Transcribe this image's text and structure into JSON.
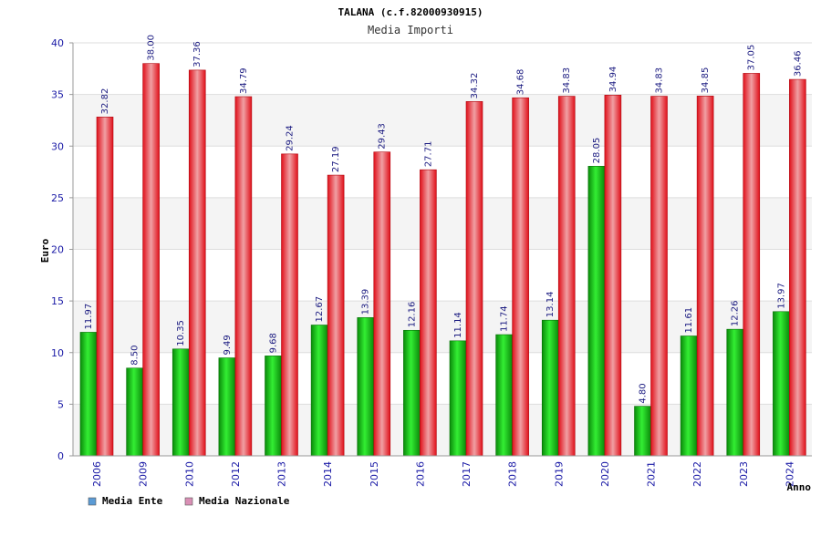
{
  "chart_data": {
    "type": "bar",
    "title": "TALANA (c.f.82000930915)",
    "subtitle": "Media Importi",
    "ylabel": "Euro",
    "xlabel": "Anno",
    "ylim": [
      0,
      40
    ],
    "yticks": [
      0,
      5,
      10,
      15,
      20,
      25,
      30,
      35,
      40
    ],
    "categories": [
      "2006",
      "2009",
      "2010",
      "2012",
      "2013",
      "2014",
      "2015",
      "2016",
      "2017",
      "2018",
      "2019",
      "2020",
      "2021",
      "2022",
      "2023",
      "2024"
    ],
    "series": [
      {
        "name": "Media Ente",
        "color": "#00b400",
        "values": [
          11.97,
          8.5,
          10.35,
          9.49,
          9.68,
          12.67,
          13.39,
          12.16,
          11.14,
          11.74,
          13.14,
          28.05,
          4.8,
          11.61,
          12.26,
          13.97
        ]
      },
      {
        "name": "Media Nazionale",
        "color": "#e8101a",
        "values": [
          32.82,
          38.0,
          37.36,
          34.79,
          29.24,
          27.19,
          29.43,
          27.71,
          34.32,
          34.68,
          34.83,
          34.94,
          34.83,
          34.85,
          37.05,
          36.46
        ]
      }
    ],
    "legend": {
      "placement": "bottom-left",
      "items": [
        {
          "label": "Media Ente",
          "color": "#5b9bd5"
        },
        {
          "label": "Media Nazionale",
          "color": "#d98fb5"
        }
      ]
    },
    "grid": true
  }
}
